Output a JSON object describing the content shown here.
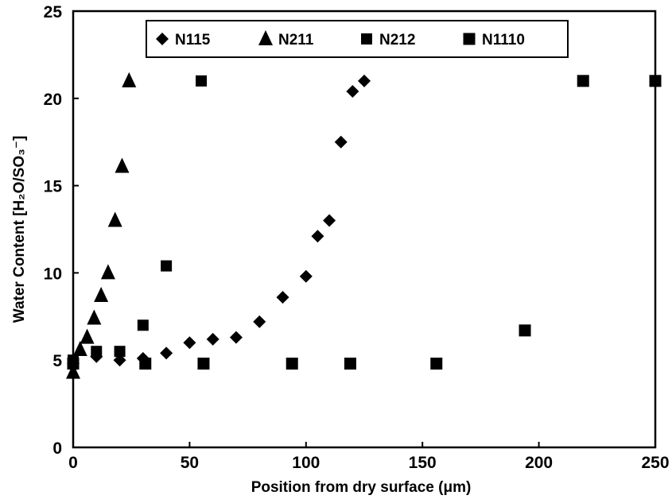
{
  "chart_data": {
    "type": "scatter",
    "title": "",
    "xlabel": "Position from dry surface (μm)",
    "ylabel": "Water Content [H₂O/SO₃⁻]",
    "xlim": [
      0,
      250
    ],
    "ylim": [
      0,
      25
    ],
    "xticks": [
      0,
      50,
      100,
      150,
      200,
      250
    ],
    "yticks": [
      0,
      5,
      10,
      15,
      20,
      25
    ],
    "grid": false,
    "legend_position": "top",
    "series": [
      {
        "name": "N115",
        "marker": "diamond",
        "points": [
          {
            "x": 0,
            "y": 4.8
          },
          {
            "x": 10,
            "y": 5.2
          },
          {
            "x": 20,
            "y": 5.0
          },
          {
            "x": 30,
            "y": 5.1
          },
          {
            "x": 40,
            "y": 5.4
          },
          {
            "x": 50,
            "y": 6.0
          },
          {
            "x": 60,
            "y": 6.2
          },
          {
            "x": 70,
            "y": 6.3
          },
          {
            "x": 80,
            "y": 7.2
          },
          {
            "x": 90,
            "y": 8.6
          },
          {
            "x": 100,
            "y": 9.8
          },
          {
            "x": 105,
            "y": 12.1
          },
          {
            "x": 110,
            "y": 13.0
          },
          {
            "x": 115,
            "y": 17.5
          },
          {
            "x": 120,
            "y": 20.4
          },
          {
            "x": 125,
            "y": 21.0
          }
        ]
      },
      {
        "name": "N211",
        "marker": "triangle",
        "points": [
          {
            "x": 0,
            "y": 4.3
          },
          {
            "x": 3,
            "y": 5.6
          },
          {
            "x": 6,
            "y": 6.3
          },
          {
            "x": 9,
            "y": 7.4
          },
          {
            "x": 12,
            "y": 8.7
          },
          {
            "x": 15,
            "y": 10.0
          },
          {
            "x": 18,
            "y": 13.0
          },
          {
            "x": 21,
            "y": 16.1
          },
          {
            "x": 24,
            "y": 21.0
          }
        ]
      },
      {
        "name": "N212",
        "marker": "square-small",
        "points": [
          {
            "x": 0,
            "y": 5.0
          },
          {
            "x": 10,
            "y": 5.5
          },
          {
            "x": 20,
            "y": 5.5
          },
          {
            "x": 30,
            "y": 7.0
          },
          {
            "x": 40,
            "y": 10.4
          },
          {
            "x": 55,
            "y": 21.0
          }
        ]
      },
      {
        "name": "N1110",
        "marker": "square",
        "points": [
          {
            "x": 0,
            "y": 4.8
          },
          {
            "x": 31,
            "y": 4.8
          },
          {
            "x": 56,
            "y": 4.8
          },
          {
            "x": 94,
            "y": 4.8
          },
          {
            "x": 119,
            "y": 4.8
          },
          {
            "x": 156,
            "y": 4.8
          },
          {
            "x": 194,
            "y": 6.7
          },
          {
            "x": 219,
            "y": 21.0
          },
          {
            "x": 250,
            "y": 21.0
          }
        ]
      }
    ]
  },
  "legend": {
    "items": [
      "N115",
      "N211",
      "N212",
      "N1110"
    ]
  },
  "colors": {
    "marker": "#000000",
    "axis": "#000000",
    "background": "#ffffff"
  }
}
